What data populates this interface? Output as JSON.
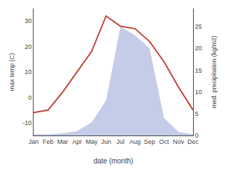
{
  "chart_data": {
    "type": "line",
    "categories": [
      "Jan",
      "Feb",
      "Mar",
      "Apr",
      "May",
      "Jun",
      "Jul",
      "Aug",
      "Sep",
      "Oct",
      "Nov",
      "Dec"
    ],
    "xlabel": "date (month)",
    "ylabel": "max temp (C)",
    "y2label": "med. precipitation (kg/m2)",
    "series": [
      {
        "type": "area",
        "axis": "y2",
        "color": "#c5cce8",
        "values": [
          0.3,
          0.3,
          0.5,
          1.0,
          3,
          8,
          25,
          23,
          20,
          4,
          0.8,
          0.3
        ]
      },
      {
        "type": "line",
        "color": "#c0433a",
        "values": [
          -6,
          -5,
          2,
          10,
          18,
          32,
          28,
          27,
          22,
          14,
          4,
          -5
        ]
      }
    ],
    "ylim": [
      -15,
      35
    ],
    "yticks": [
      -10,
      0,
      10,
      20,
      30
    ],
    "y2lim": [
      0,
      29.17
    ],
    "y2ticks": [
      0,
      5,
      10,
      15,
      20,
      25
    ],
    "grid": false
  }
}
